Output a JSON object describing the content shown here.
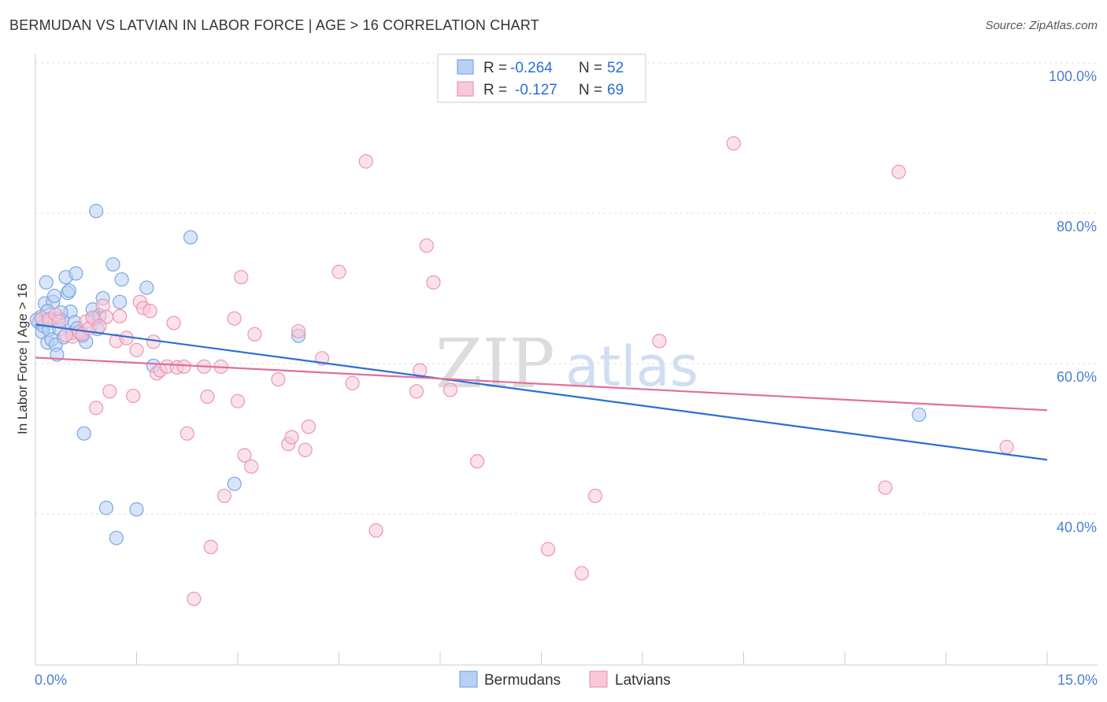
{
  "header": {
    "title": "BERMUDAN VS LATVIAN IN LABOR FORCE | AGE > 16 CORRELATION CHART",
    "source": "Source: ZipAtlas.com"
  },
  "watermark": {
    "zip": "ZIP",
    "atlas": "atlas"
  },
  "legend": {
    "r_label": "R =",
    "n_label": "N =",
    "rows": [
      {
        "r": "-0.264",
        "n": "52"
      },
      {
        "r": "-0.127",
        "n": "69"
      }
    ]
  },
  "chart_data": {
    "type": "scatter",
    "title": "BERMUDAN VS LATVIAN IN LABOR FORCE | AGE > 16 CORRELATION CHART",
    "xlabel": "",
    "ylabel": "In Labor Force | Age > 16",
    "xlim": [
      0,
      15
    ],
    "ylim": [
      20,
      102
    ],
    "x_tick_labels": [
      "0.0%",
      "15.0%"
    ],
    "y_ticks": [
      40,
      60,
      80,
      100
    ],
    "y_tick_labels": [
      "40.0%",
      "60.0%",
      "80.0%",
      "100.0%"
    ],
    "grid": true,
    "legend_position": "top-center",
    "series": [
      {
        "name": "Bermudans",
        "color": "#7ba7e3",
        "fill": "#b8d0f3",
        "line_color": "#2a6fd6",
        "trend": {
          "x": [
            0,
            15
          ],
          "y": [
            65.2,
            47.2
          ]
        },
        "points": [
          [
            0.05,
            65.5
          ],
          [
            0.08,
            66.2
          ],
          [
            0.1,
            64.2
          ],
          [
            0.12,
            65.0
          ],
          [
            0.14,
            68.0
          ],
          [
            0.16,
            70.8
          ],
          [
            0.18,
            62.8
          ],
          [
            0.2,
            64.5
          ],
          [
            0.22,
            66.0
          ],
          [
            0.24,
            63.2
          ],
          [
            0.26,
            68.2
          ],
          [
            0.28,
            69.0
          ],
          [
            0.3,
            62.5
          ],
          [
            0.32,
            61.2
          ],
          [
            0.34,
            66.0
          ],
          [
            0.36,
            64.6
          ],
          [
            0.4,
            65.8
          ],
          [
            0.42,
            63.5
          ],
          [
            0.45,
            71.5
          ],
          [
            0.48,
            69.4
          ],
          [
            0.5,
            69.7
          ],
          [
            0.52,
            66.9
          ],
          [
            0.55,
            64.1
          ],
          [
            0.58,
            65.5
          ],
          [
            0.6,
            72.0
          ],
          [
            0.62,
            64.7
          ],
          [
            0.65,
            64.2
          ],
          [
            0.7,
            63.7
          ],
          [
            0.72,
            50.7
          ],
          [
            0.75,
            62.9
          ],
          [
            0.85,
            67.2
          ],
          [
            0.88,
            66.0
          ],
          [
            0.9,
            80.3
          ],
          [
            0.92,
            64.6
          ],
          [
            0.95,
            66.4
          ],
          [
            1.0,
            68.7
          ],
          [
            1.05,
            40.8
          ],
          [
            1.15,
            73.2
          ],
          [
            1.2,
            36.8
          ],
          [
            1.25,
            68.2
          ],
          [
            1.28,
            71.2
          ],
          [
            1.5,
            40.6
          ],
          [
            1.65,
            70.1
          ],
          [
            1.75,
            59.7
          ],
          [
            2.3,
            76.8
          ],
          [
            2.95,
            44.0
          ],
          [
            3.9,
            63.7
          ],
          [
            13.1,
            53.2
          ],
          [
            0.02,
            65.8
          ],
          [
            0.18,
            67.0
          ],
          [
            0.38,
            66.8
          ],
          [
            0.68,
            64.0
          ]
        ]
      },
      {
        "name": "Latvians",
        "color": "#eb95b3",
        "fill": "#f8c9d8",
        "line_color": "#e0709a",
        "trend": {
          "x": [
            0,
            15
          ],
          "y": [
            60.8,
            53.8
          ]
        },
        "points": [
          [
            0.1,
            66.0
          ],
          [
            0.2,
            65.8
          ],
          [
            0.3,
            66.5
          ],
          [
            0.35,
            65.6
          ],
          [
            0.55,
            63.6
          ],
          [
            0.65,
            64.2
          ],
          [
            0.7,
            63.9
          ],
          [
            0.75,
            65.6
          ],
          [
            0.8,
            64.7
          ],
          [
            0.85,
            66.1
          ],
          [
            0.9,
            54.1
          ],
          [
            1.0,
            67.7
          ],
          [
            1.1,
            56.3
          ],
          [
            1.2,
            63.0
          ],
          [
            1.25,
            66.3
          ],
          [
            1.35,
            63.4
          ],
          [
            1.45,
            55.7
          ],
          [
            1.5,
            61.8
          ],
          [
            1.55,
            68.2
          ],
          [
            1.6,
            67.4
          ],
          [
            1.7,
            67.0
          ],
          [
            1.75,
            62.9
          ],
          [
            1.8,
            58.7
          ],
          [
            1.85,
            59.1
          ],
          [
            1.95,
            59.6
          ],
          [
            2.05,
            65.4
          ],
          [
            2.1,
            59.5
          ],
          [
            2.2,
            59.6
          ],
          [
            2.25,
            50.7
          ],
          [
            2.35,
            28.7
          ],
          [
            2.5,
            59.6
          ],
          [
            2.55,
            55.6
          ],
          [
            2.6,
            35.6
          ],
          [
            2.75,
            59.6
          ],
          [
            2.8,
            42.4
          ],
          [
            2.95,
            66.0
          ],
          [
            3.0,
            55.0
          ],
          [
            3.05,
            71.5
          ],
          [
            3.1,
            47.8
          ],
          [
            3.2,
            46.3
          ],
          [
            3.25,
            63.9
          ],
          [
            3.6,
            57.9
          ],
          [
            3.75,
            49.3
          ],
          [
            3.8,
            50.2
          ],
          [
            3.9,
            64.3
          ],
          [
            4.0,
            48.5
          ],
          [
            4.05,
            51.6
          ],
          [
            4.25,
            60.7
          ],
          [
            4.5,
            72.2
          ],
          [
            4.7,
            57.4
          ],
          [
            4.9,
            86.9
          ],
          [
            5.05,
            37.8
          ],
          [
            5.65,
            56.3
          ],
          [
            5.7,
            59.1
          ],
          [
            5.8,
            75.7
          ],
          [
            5.9,
            70.8
          ],
          [
            6.15,
            56.5
          ],
          [
            6.55,
            47.0
          ],
          [
            7.6,
            35.3
          ],
          [
            8.1,
            32.1
          ],
          [
            8.3,
            42.4
          ],
          [
            9.25,
            63.0
          ],
          [
            10.35,
            89.3
          ],
          [
            12.6,
            43.5
          ],
          [
            12.8,
            85.5
          ],
          [
            14.4,
            48.9
          ],
          [
            1.05,
            66.2
          ],
          [
            0.45,
            63.8
          ],
          [
            0.95,
            65.0
          ]
        ]
      }
    ]
  },
  "bottom_legend": [
    "Bermudans",
    "Latvians"
  ]
}
